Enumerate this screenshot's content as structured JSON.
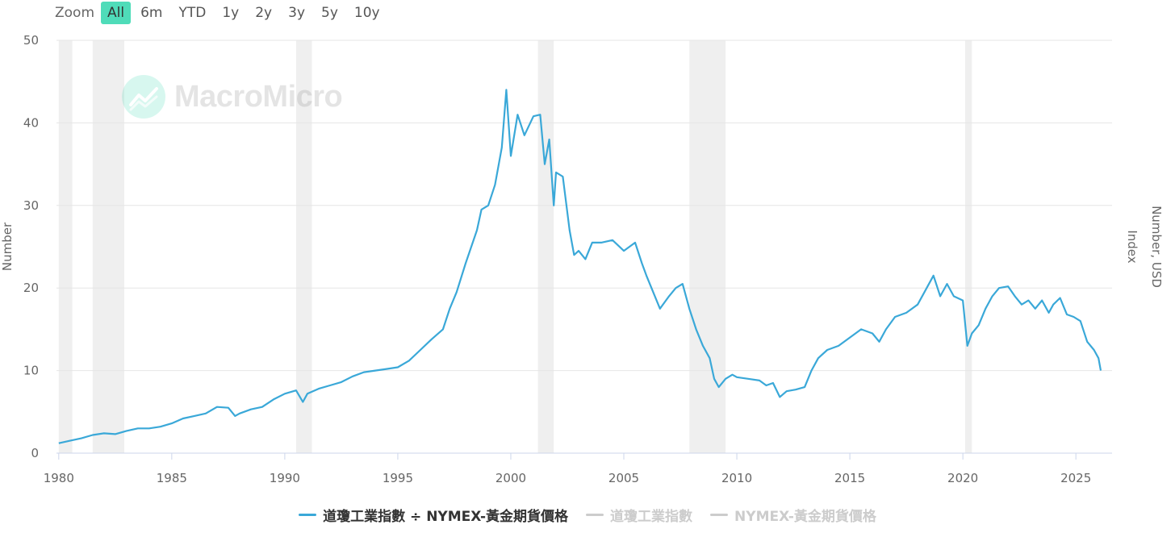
{
  "zoom": {
    "label": "Zoom",
    "buttons": [
      "All",
      "6m",
      "YTD",
      "1y",
      "2y",
      "3y",
      "5y",
      "10y"
    ],
    "active": "All"
  },
  "watermark": {
    "text": "MacroMicro"
  },
  "colors": {
    "line": "#3aa8d8",
    "recession": "#efefef",
    "grid": "#e6e6e6",
    "legend_inactive": "#cccccc",
    "zoom_active": "#4fdcb9"
  },
  "legend": [
    {
      "label": "道瓊工業指數 ÷ NYMEX-黃金期貨價格",
      "color": "#3aa8d8",
      "active": true
    },
    {
      "label": "道瓊工業指數",
      "color": "#cccccc",
      "active": false
    },
    {
      "label": "NYMEX-黃金期貨價格",
      "color": "#cccccc",
      "active": false
    }
  ],
  "chart_data": {
    "type": "line",
    "xlabel": "",
    "ylabel": "Number",
    "y2label_lines": [
      "Number, USD",
      "Index"
    ],
    "ylim": [
      0,
      50
    ],
    "xlim": [
      1979.9,
      2026.6
    ],
    "y_ticks": [
      "0",
      "10",
      "20",
      "30",
      "40",
      "50"
    ],
    "x_ticks": [
      "1980",
      "1985",
      "1990",
      "1995",
      "2000",
      "2005",
      "2010",
      "2015",
      "2020",
      "2025"
    ],
    "recession_bands": [
      [
        1980.0,
        1980.6
      ],
      [
        1981.5,
        1982.9
      ],
      [
        1990.5,
        1991.2
      ],
      [
        2001.2,
        2001.9
      ],
      [
        2007.9,
        2009.5
      ],
      [
        2020.1,
        2020.4
      ]
    ],
    "grid": true,
    "legend_position": "bottom",
    "series": [
      {
        "name": "道瓊工業指數 ÷ NYMEX-黃金期貨價格",
        "x": [
          1980.0,
          1980.5,
          1981.0,
          1981.5,
          1982.0,
          1982.5,
          1983.0,
          1983.5,
          1984.0,
          1984.5,
          1985.0,
          1985.5,
          1986.0,
          1986.5,
          1987.0,
          1987.5,
          1987.8,
          1988.0,
          1988.5,
          1989.0,
          1989.5,
          1990.0,
          1990.5,
          1990.8,
          1991.0,
          1991.5,
          1992.0,
          1992.5,
          1993.0,
          1993.5,
          1994.0,
          1994.5,
          1995.0,
          1995.5,
          1996.0,
          1996.5,
          1997.0,
          1997.3,
          1997.6,
          1998.0,
          1998.5,
          1998.7,
          1999.0,
          1999.3,
          1999.6,
          1999.8,
          2000.0,
          2000.3,
          2000.6,
          2001.0,
          2001.3,
          2001.5,
          2001.7,
          2001.9,
          2002.0,
          2002.3,
          2002.6,
          2002.8,
          2003.0,
          2003.3,
          2003.6,
          2004.0,
          2004.5,
          2005.0,
          2005.5,
          2005.8,
          2006.0,
          2006.3,
          2006.6,
          2007.0,
          2007.3,
          2007.6,
          2007.9,
          2008.2,
          2008.5,
          2008.8,
          2009.0,
          2009.2,
          2009.5,
          2009.8,
          2010.0,
          2010.5,
          2011.0,
          2011.3,
          2011.6,
          2011.9,
          2012.2,
          2012.6,
          2013.0,
          2013.3,
          2013.6,
          2014.0,
          2014.5,
          2015.0,
          2015.5,
          2016.0,
          2016.3,
          2016.6,
          2017.0,
          2017.5,
          2018.0,
          2018.4,
          2018.7,
          2019.0,
          2019.3,
          2019.6,
          2020.0,
          2020.2,
          2020.4,
          2020.7,
          2021.0,
          2021.3,
          2021.6,
          2022.0,
          2022.3,
          2022.6,
          2022.9,
          2023.2,
          2023.5,
          2023.8,
          2024.0,
          2024.3,
          2024.6,
          2024.9,
          2025.2,
          2025.5,
          2025.8,
          2026.0,
          2026.1
        ],
        "y": [
          1.2,
          1.5,
          1.8,
          2.2,
          2.4,
          2.3,
          2.7,
          3.0,
          3.0,
          3.2,
          3.6,
          4.2,
          4.5,
          4.8,
          5.6,
          5.5,
          4.5,
          4.8,
          5.3,
          5.6,
          6.5,
          7.2,
          7.6,
          6.2,
          7.2,
          7.8,
          8.2,
          8.6,
          9.3,
          9.8,
          10.0,
          10.2,
          10.4,
          11.2,
          12.5,
          13.8,
          15.0,
          17.5,
          19.5,
          23.0,
          27.0,
          29.5,
          30.0,
          32.5,
          37.0,
          44.0,
          36.0,
          41.0,
          38.5,
          40.8,
          41.0,
          35.0,
          38.0,
          30.0,
          34.0,
          33.5,
          27.0,
          24.0,
          24.5,
          23.5,
          25.5,
          25.5,
          25.8,
          24.5,
          25.5,
          23.0,
          21.5,
          19.5,
          17.5,
          19.0,
          20.0,
          20.5,
          17.5,
          15.0,
          13.0,
          11.5,
          9.0,
          8.0,
          9.0,
          9.5,
          9.2,
          9.0,
          8.8,
          8.2,
          8.5,
          6.8,
          7.5,
          7.7,
          8.0,
          10.0,
          11.5,
          12.5,
          13.0,
          14.0,
          15.0,
          14.5,
          13.5,
          15.0,
          16.5,
          17.0,
          18.0,
          20.0,
          21.5,
          19.0,
          20.5,
          19.0,
          18.5,
          13.0,
          14.5,
          15.5,
          17.5,
          19.0,
          20.0,
          20.2,
          19.0,
          18.0,
          18.5,
          17.5,
          18.5,
          17.0,
          18.0,
          18.8,
          16.8,
          16.5,
          16.0,
          13.5,
          12.5,
          11.5,
          10.0
        ]
      }
    ]
  }
}
